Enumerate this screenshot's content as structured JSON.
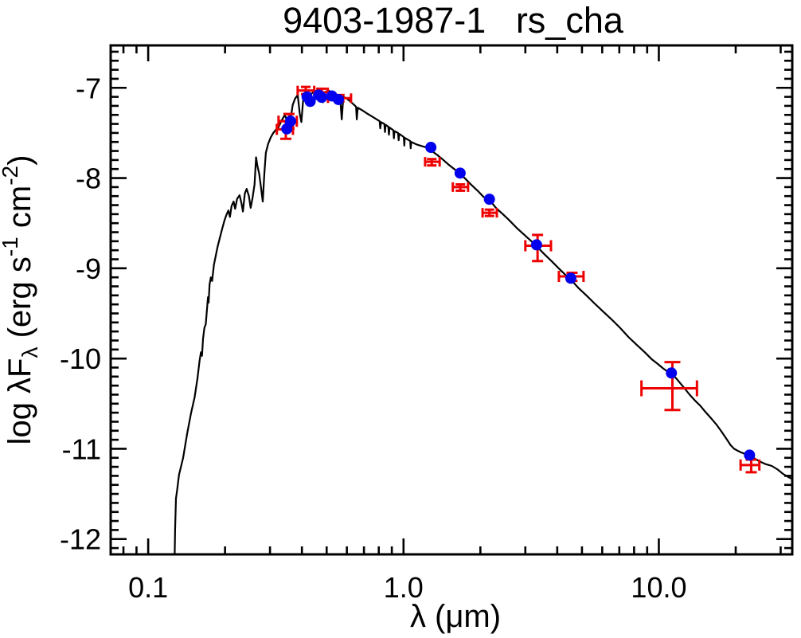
{
  "chart_data": {
    "type": "scatter",
    "title": "9403-1987-1   rs_cha",
    "xlabel": "λ (μm)",
    "ylabel": "log λFλ (erg s⁻¹ cm⁻²)",
    "ylabel_parts": [
      {
        "text": "log λF",
        "shift": "none"
      },
      {
        "text": "λ",
        "shift": "sub"
      },
      {
        "text": " (erg s",
        "shift": "none"
      },
      {
        "text": "-1",
        "shift": "sup"
      },
      {
        "text": " cm",
        "shift": "none"
      },
      {
        "text": "-2",
        "shift": "sup"
      },
      {
        "text": ")",
        "shift": "none"
      }
    ],
    "x_scale": "log",
    "y_scale": "linear",
    "xlim": [
      0.0713,
      33.3
    ],
    "ylim": [
      -12.17,
      -6.53
    ],
    "grid": false,
    "legend": "none",
    "x_axis": {
      "major": [
        0.1,
        1.0,
        10.0
      ],
      "major_labels": [
        "0.1",
        "1.0",
        "10.0"
      ],
      "minor": [
        0.08,
        0.09,
        0.2,
        0.3,
        0.4,
        0.5,
        0.6,
        0.7,
        0.8,
        0.9,
        2,
        3,
        4,
        5,
        6,
        7,
        8,
        9,
        20,
        30
      ]
    },
    "y_axis": {
      "major": [
        -7,
        -8,
        -9,
        -10,
        -11,
        -12
      ],
      "major_labels": [
        "-7",
        "-8",
        "-9",
        "-10",
        "-11",
        "-12"
      ],
      "minor_step": 0.1
    },
    "colors": {
      "model_curve": "#000000",
      "photometry_points": "#0000ee",
      "error_bars": "#ee0000",
      "frame": "#000000",
      "background": "#ffffff"
    },
    "blue_points": [
      [
        0.349,
        -7.455
      ],
      [
        0.361,
        -7.37
      ],
      [
        0.419,
        -7.1
      ],
      [
        0.431,
        -7.15
      ],
      [
        0.465,
        -7.08
      ],
      [
        0.478,
        -7.105
      ],
      [
        0.524,
        -7.09
      ],
      [
        0.556,
        -7.13
      ],
      [
        1.28,
        -7.66
      ],
      [
        1.666,
        -7.945
      ],
      [
        2.17,
        -8.235
      ],
      [
        3.32,
        -8.74
      ],
      [
        4.52,
        -9.11
      ],
      [
        11.2,
        -10.16
      ],
      [
        22.65,
        -11.07
      ]
    ],
    "red_points": [
      {
        "x": 0.356,
        "xlo": 0.324,
        "xhi": 0.382,
        "y": -7.37,
        "ylo": -7.29,
        "yhi": -7.45,
        "cap": 7
      },
      {
        "x": 0.346,
        "xlo": 0.319,
        "xhi": 0.369,
        "y": -7.46,
        "ylo": -7.37,
        "yhi": -7.565,
        "cap": 7
      },
      {
        "x": 0.414,
        "xlo": 0.385,
        "xhi": 0.447,
        "y": -7.03,
        "ylo": -6.99,
        "yhi": -7.07,
        "cap": 6
      },
      {
        "x": 0.478,
        "xlo": 0.46,
        "xhi": 0.505,
        "y": -7.05,
        "ylo": -7.01,
        "yhi": -7.09,
        "cap": 6
      },
      {
        "x": 0.563,
        "xlo": 0.506,
        "xhi": 0.623,
        "y": -7.115,
        "ylo": -7.08,
        "yhi": -7.15,
        "cap": 6
      },
      {
        "x": 1.29,
        "xlo": 1.215,
        "xhi": 1.385,
        "y": -7.82,
        "ylo": -7.79,
        "yhi": -7.86,
        "cap": 6
      },
      {
        "x": 1.67,
        "xlo": 1.56,
        "xhi": 1.79,
        "y": -8.1,
        "ylo": -8.07,
        "yhi": -8.14,
        "cap": 6
      },
      {
        "x": 2.17,
        "xlo": 2.04,
        "xhi": 2.32,
        "y": -8.385,
        "ylo": -8.35,
        "yhi": -8.42,
        "cap": 6
      },
      {
        "x": 3.35,
        "xlo": 3.0,
        "xhi": 3.78,
        "y": -8.75,
        "ylo": -8.63,
        "yhi": -8.92,
        "cap": 7
      },
      {
        "x": 4.57,
        "xlo": 4.06,
        "xhi": 5.07,
        "y": -9.09,
        "ylo": -9.05,
        "yhi": -9.14,
        "cap": 7
      },
      {
        "x": 11.3,
        "xlo": 8.55,
        "xhi": 14.1,
        "y": -10.33,
        "ylo": -10.04,
        "yhi": -10.57,
        "cap": 10
      },
      {
        "x": 23.0,
        "xlo": 20.9,
        "xhi": 24.75,
        "y": -11.18,
        "ylo": -11.12,
        "yhi": -11.26,
        "cap": 7
      }
    ],
    "model_curve": [
      [
        0.127,
        -12.17
      ],
      [
        0.1275,
        -11.9
      ],
      [
        0.1285,
        -11.55
      ],
      [
        0.13,
        -11.45
      ],
      [
        0.132,
        -11.29
      ],
      [
        0.137,
        -11.1
      ],
      [
        0.142,
        -10.84
      ],
      [
        0.147,
        -10.61
      ],
      [
        0.152,
        -10.43
      ],
      [
        0.156,
        -10.22
      ],
      [
        0.159,
        -10.02
      ],
      [
        0.161,
        -9.93
      ],
      [
        0.1625,
        -9.97
      ],
      [
        0.164,
        -9.78
      ],
      [
        0.166,
        -9.66
      ],
      [
        0.168,
        -9.62
      ],
      [
        0.17,
        -9.45
      ],
      [
        0.1715,
        -9.32
      ],
      [
        0.1725,
        -9.38
      ],
      [
        0.174,
        -9.18
      ],
      [
        0.176,
        -9.1
      ],
      [
        0.178,
        -9.14
      ],
      [
        0.181,
        -8.96
      ],
      [
        0.184,
        -8.86
      ],
      [
        0.187,
        -8.76
      ],
      [
        0.191,
        -8.66
      ],
      [
        0.195,
        -8.56
      ],
      [
        0.199,
        -8.47
      ],
      [
        0.203,
        -8.4
      ],
      [
        0.206,
        -8.36
      ],
      [
        0.209,
        -8.43
      ],
      [
        0.212,
        -8.31
      ],
      [
        0.216,
        -8.26
      ],
      [
        0.219,
        -8.34
      ],
      [
        0.223,
        -8.23
      ],
      [
        0.228,
        -8.19
      ],
      [
        0.232,
        -8.28
      ],
      [
        0.235,
        -8.37
      ],
      [
        0.239,
        -8.17
      ],
      [
        0.243,
        -8.12
      ],
      [
        0.248,
        -8.2
      ],
      [
        0.252,
        -8.33
      ],
      [
        0.256,
        -8.23
      ],
      [
        0.261,
        -8.07
      ],
      [
        0.2645,
        -7.77
      ],
      [
        0.268,
        -7.87
      ],
      [
        0.272,
        -7.95
      ],
      [
        0.277,
        -8.12
      ],
      [
        0.281,
        -8.26
      ],
      [
        0.285,
        -7.95
      ],
      [
        0.289,
        -7.72
      ],
      [
        0.295,
        -7.62
      ],
      [
        0.302,
        -7.55
      ],
      [
        0.309,
        -7.5
      ],
      [
        0.317,
        -7.46
      ],
      [
        0.325,
        -7.43
      ],
      [
        0.332,
        -7.37
      ],
      [
        0.343,
        -7.3
      ],
      [
        0.352,
        -7.39
      ],
      [
        0.357,
        -7.45
      ],
      [
        0.362,
        -7.33
      ],
      [
        0.368,
        -7.19
      ],
      [
        0.376,
        -7.12
      ],
      [
        0.385,
        -7.08
      ],
      [
        0.392,
        -7.28
      ],
      [
        0.398,
        -7.38
      ],
      [
        0.404,
        -7.15
      ],
      [
        0.413,
        -7.06
      ],
      [
        0.422,
        -7.04
      ],
      [
        0.428,
        -7.16
      ],
      [
        0.434,
        -7.07
      ],
      [
        0.442,
        -7.05
      ],
      [
        0.45,
        -7.03
      ],
      [
        0.458,
        -7.06
      ],
      [
        0.466,
        -7.03
      ],
      [
        0.476,
        -7.04
      ],
      [
        0.484,
        -7.16
      ],
      [
        0.492,
        -7.05
      ],
      [
        0.508,
        -7.03
      ],
      [
        0.527,
        -7.06
      ],
      [
        0.545,
        -7.09
      ],
      [
        0.565,
        -7.12
      ],
      [
        0.573,
        -7.35
      ],
      [
        0.581,
        -7.1
      ],
      [
        0.6,
        -7.12
      ],
      [
        0.618,
        -7.15
      ],
      [
        0.641,
        -7.19
      ],
      [
        0.652,
        -7.21
      ],
      [
        0.656,
        -7.35
      ],
      [
        0.662,
        -7.22
      ],
      [
        0.69,
        -7.25
      ],
      [
        0.72,
        -7.285
      ],
      [
        0.75,
        -7.315
      ],
      [
        0.78,
        -7.345
      ],
      [
        0.806,
        -7.37
      ],
      [
        0.811,
        -7.45
      ],
      [
        0.816,
        -7.38
      ],
      [
        0.841,
        -7.4
      ],
      [
        0.846,
        -7.49
      ],
      [
        0.851,
        -7.41
      ],
      [
        0.872,
        -7.43
      ],
      [
        0.877,
        -7.52
      ],
      [
        0.882,
        -7.44
      ],
      [
        0.912,
        -7.47
      ],
      [
        0.917,
        -7.56
      ],
      [
        0.922,
        -7.48
      ],
      [
        0.952,
        -7.5
      ],
      [
        0.957,
        -7.58
      ],
      [
        0.962,
        -7.51
      ],
      [
        1.002,
        -7.545
      ],
      [
        1.007,
        -7.64
      ],
      [
        1.012,
        -7.555
      ],
      [
        1.062,
        -7.59
      ],
      [
        1.067,
        -7.67
      ],
      [
        1.072,
        -7.6
      ],
      [
        1.13,
        -7.63
      ],
      [
        1.21,
        -7.655
      ],
      [
        1.28,
        -7.665
      ],
      [
        1.29,
        -7.7
      ],
      [
        1.35,
        -7.74
      ],
      [
        1.42,
        -7.79
      ],
      [
        1.5,
        -7.85
      ],
      [
        1.58,
        -7.9
      ],
      [
        1.666,
        -7.95
      ],
      [
        1.75,
        -8.01
      ],
      [
        1.85,
        -8.08
      ],
      [
        1.95,
        -8.14
      ],
      [
        2.06,
        -8.21
      ],
      [
        2.17,
        -8.24
      ],
      [
        2.3,
        -8.33
      ],
      [
        2.45,
        -8.4
      ],
      [
        2.6,
        -8.47
      ],
      [
        2.77,
        -8.55
      ],
      [
        2.95,
        -8.62
      ],
      [
        3.14,
        -8.69
      ],
      [
        3.32,
        -8.755
      ],
      [
        3.55,
        -8.84
      ],
      [
        3.8,
        -8.92
      ],
      [
        4.05,
        -9.0
      ],
      [
        4.3,
        -9.07
      ],
      [
        4.52,
        -9.125
      ],
      [
        4.85,
        -9.22
      ],
      [
        5.2,
        -9.3
      ],
      [
        5.6,
        -9.39
      ],
      [
        6.05,
        -9.48
      ],
      [
        6.55,
        -9.57
      ],
      [
        7.05,
        -9.66
      ],
      [
        7.6,
        -9.76
      ],
      [
        8.2,
        -9.85
      ],
      [
        8.8,
        -9.93
      ],
      [
        9.4,
        -10.01
      ],
      [
        9.9,
        -10.06
      ],
      [
        10.4,
        -10.11
      ],
      [
        10.9,
        -10.15
      ],
      [
        11.2,
        -10.17
      ],
      [
        11.7,
        -10.22
      ],
      [
        12.1,
        -10.27
      ],
      [
        12.6,
        -10.33
      ],
      [
        13.2,
        -10.4
      ],
      [
        13.8,
        -10.46
      ],
      [
        14.5,
        -10.52
      ],
      [
        15.2,
        -10.59
      ],
      [
        16.0,
        -10.66
      ],
      [
        16.8,
        -10.73
      ],
      [
        17.6,
        -10.81
      ],
      [
        18.4,
        -10.89
      ],
      [
        19.1,
        -10.96
      ],
      [
        19.7,
        -11.0
      ],
      [
        20.3,
        -11.02
      ],
      [
        21.0,
        -11.04
      ],
      [
        21.9,
        -11.06
      ],
      [
        22.7,
        -11.08
      ],
      [
        23.8,
        -11.11
      ],
      [
        24.8,
        -11.14
      ],
      [
        26.2,
        -11.17
      ],
      [
        27.7,
        -11.19
      ],
      [
        29.2,
        -11.23
      ],
      [
        30.7,
        -11.28
      ],
      [
        32.0,
        -11.31
      ],
      [
        33.0,
        -11.33
      ]
    ],
    "layout": {
      "plot": {
        "l": 139,
        "t": 57,
        "r": 995,
        "b": 696
      },
      "tick_major_len": 20,
      "tick_minor_len": 10
    }
  }
}
